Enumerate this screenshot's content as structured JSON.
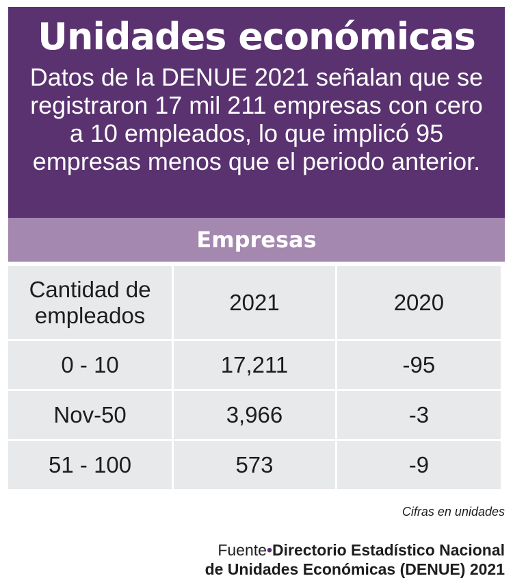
{
  "header": {
    "title": "Unidades económicas",
    "subtitle": "Datos de la DENUE 2021 señalan que se registraron 17 mil 211 empresas con cero a 10 empleados, lo que implicó 95 empresas menos que el periodo anterior."
  },
  "table": {
    "caption": "Empresas",
    "columns": [
      "Cantidad de empleados",
      "2021",
      "2020"
    ],
    "rows": [
      [
        "0 - 10",
        "17,211",
        "-95"
      ],
      [
        "Nov-50",
        "3,966",
        "-3"
      ],
      [
        "51 - 100",
        "573",
        "-9"
      ]
    ]
  },
  "footer": {
    "note": "Cifras en unidades",
    "source_label": "Fuente",
    "source_separator": "•",
    "source_line1": "Directorio Estadístico Nacional",
    "source_line2": "de Unidades Económicas (DENUE) 2021"
  },
  "colors": {
    "header_bg": "#5a3270",
    "band_bg": "#a488b0",
    "cell_bg": "#e7e9ea"
  }
}
